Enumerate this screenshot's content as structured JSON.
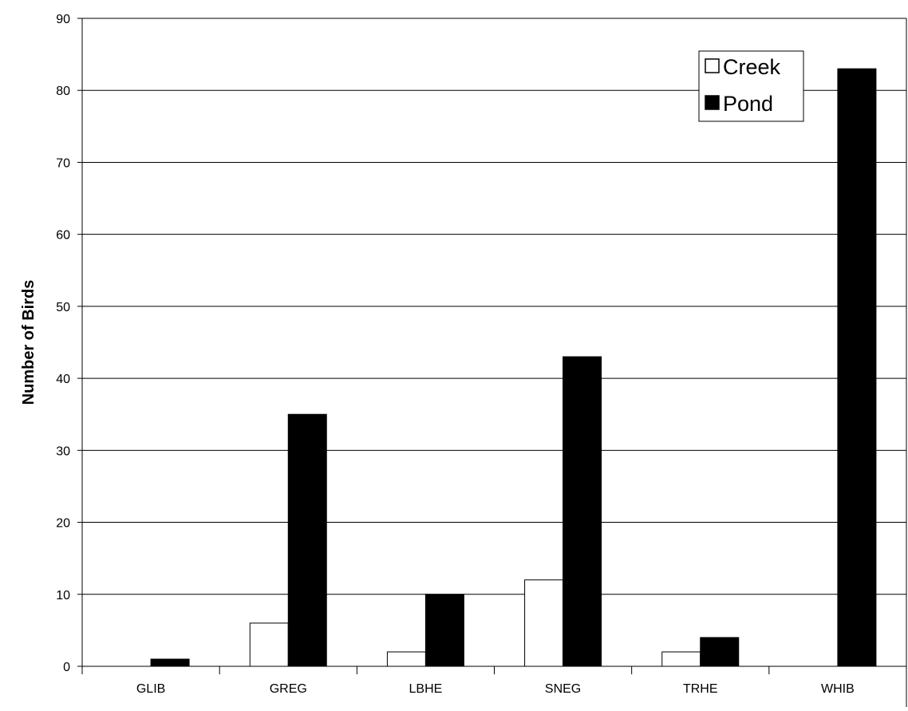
{
  "chart_data": {
    "type": "bar",
    "title": "",
    "xlabel": "",
    "ylabel": "Number of Birds",
    "categories": [
      "GLIB",
      "GREG",
      "LBHE",
      "SNEG",
      "TRHE",
      "WHIB"
    ],
    "series": [
      {
        "name": "Creek",
        "values": [
          0,
          6,
          2,
          12,
          2,
          0
        ],
        "color": "#ffffff"
      },
      {
        "name": "Pond",
        "values": [
          1,
          35,
          10,
          43,
          4,
          83
        ],
        "color": "#000000"
      }
    ],
    "ylim": [
      0,
      90
    ],
    "yticks": [
      "0",
      "10",
      "20",
      "30",
      "40",
      "50",
      "60",
      "70",
      "80",
      "90"
    ],
    "grid": "horizontal",
    "legend_position": "top-right"
  }
}
